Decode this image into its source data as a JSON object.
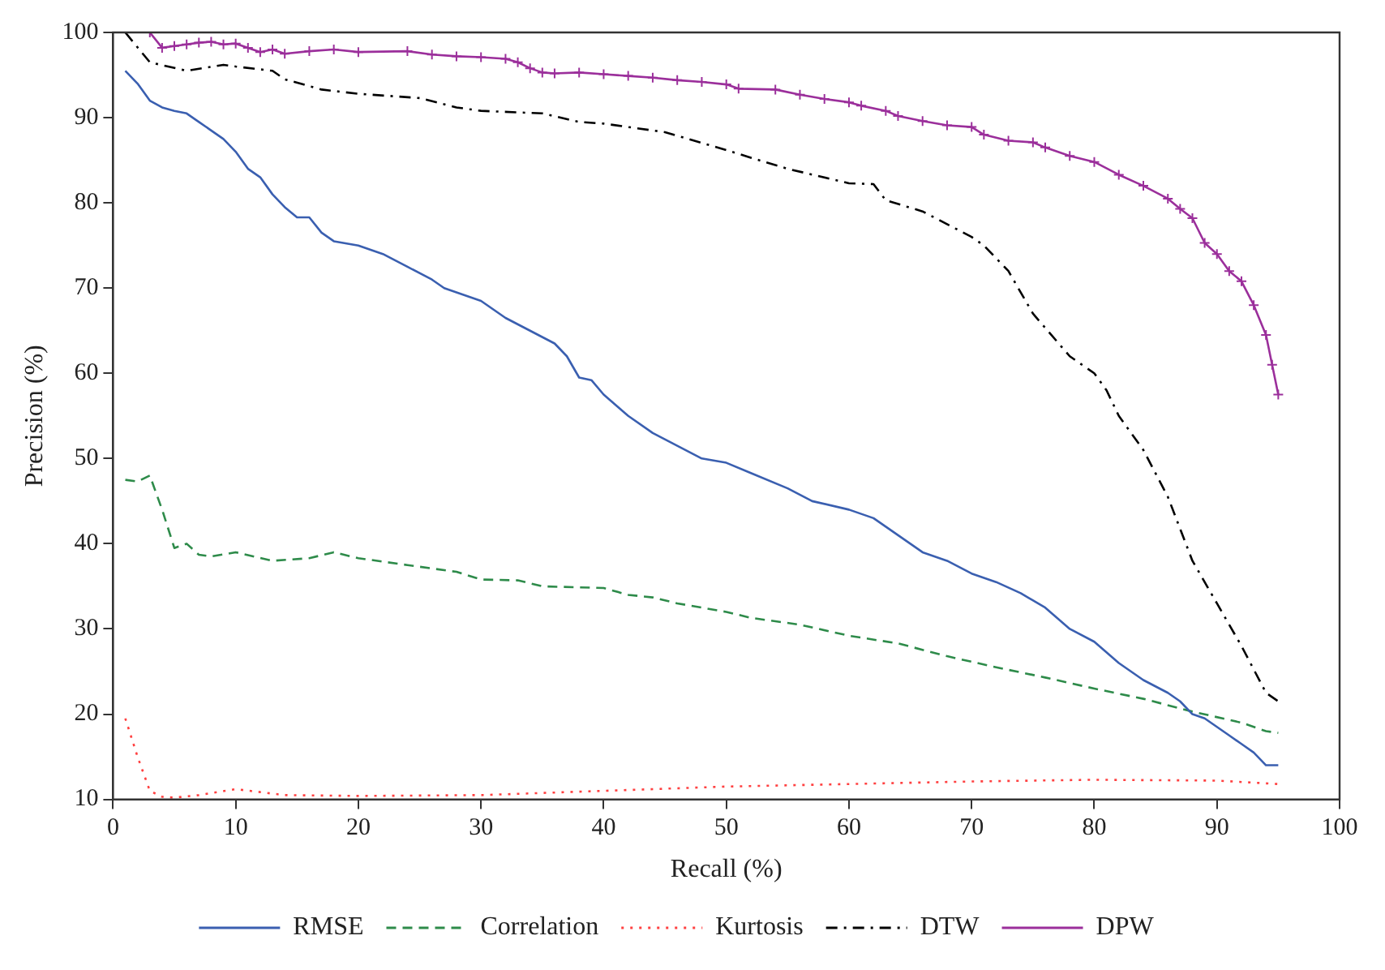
{
  "chart_data": {
    "type": "line",
    "xlabel": "Recall (%)",
    "ylabel": "Precision (%)",
    "xlim": [
      0,
      100
    ],
    "ylim": [
      10,
      100
    ],
    "xticks": [
      0,
      10,
      20,
      30,
      40,
      50,
      60,
      70,
      80,
      90,
      100
    ],
    "yticks": [
      10,
      20,
      30,
      40,
      50,
      60,
      70,
      80,
      90,
      100
    ],
    "grid": false,
    "legend": "bottom",
    "series": [
      {
        "name": "RMSE",
        "color": "#3a5fb0",
        "line_style": "solid",
        "marker": "none",
        "x": [
          1,
          2,
          3,
          4,
          5,
          6,
          7,
          8,
          9,
          10,
          11,
          12,
          13,
          14,
          15,
          16,
          17,
          18,
          20,
          22,
          24,
          26,
          27,
          30,
          32,
          34,
          36,
          37,
          38,
          39,
          40,
          42,
          44,
          46,
          48,
          50,
          52,
          55,
          57,
          60,
          62,
          64,
          66,
          68,
          70,
          72,
          74,
          76,
          78,
          80,
          82,
          84,
          86,
          87,
          88,
          89,
          90,
          91,
          92,
          93,
          94,
          95
        ],
        "values": [
          95.5,
          94,
          92,
          91.2,
          90.8,
          90.5,
          89.5,
          88.5,
          87.5,
          86,
          84,
          83,
          81,
          79.5,
          78.3,
          78.3,
          76.5,
          75.5,
          75,
          74,
          72.5,
          71,
          70,
          68.5,
          66.5,
          65,
          63.5,
          62,
          59.5,
          59.2,
          57.5,
          55,
          53,
          51.5,
          50,
          49.5,
          48.3,
          46.5,
          45,
          44,
          43,
          41,
          39,
          38,
          36.5,
          35.5,
          34.2,
          32.5,
          30,
          28.5,
          26,
          24,
          22.5,
          21.5,
          20,
          19.5,
          18.5,
          17.5,
          16.5,
          15.5,
          14,
          14
        ]
      },
      {
        "name": "Correlation",
        "color": "#2e8b4a",
        "line_style": "dashed",
        "marker": "none",
        "x": [
          1,
          2,
          3,
          4,
          5,
          6,
          7,
          8,
          10,
          13,
          16,
          18,
          20,
          24,
          28,
          30,
          33,
          35,
          40,
          42,
          44,
          46,
          50,
          52,
          56,
          60,
          64,
          68,
          72,
          76,
          80,
          84,
          88,
          92,
          94,
          95
        ],
        "values": [
          47.5,
          47.3,
          48,
          44,
          39.5,
          40,
          38.7,
          38.5,
          39,
          38,
          38.3,
          39,
          38.3,
          37.5,
          36.7,
          35.8,
          35.7,
          35,
          34.8,
          34,
          33.7,
          33,
          32,
          31.3,
          30.5,
          29.2,
          28.3,
          26.8,
          25.5,
          24.3,
          23,
          21.8,
          20.3,
          19,
          18,
          17.8
        ]
      },
      {
        "name": "Kurtosis",
        "color": "#ff4040",
        "line_style": "dotted",
        "marker": "none",
        "x": [
          1,
          2,
          3,
          4,
          5,
          7,
          10,
          14,
          20,
          30,
          40,
          50,
          60,
          70,
          80,
          90,
          95
        ],
        "values": [
          19.5,
          15,
          11,
          10.3,
          10.2,
          10.5,
          11.2,
          10.5,
          10.4,
          10.5,
          11,
          11.5,
          11.8,
          12.1,
          12.3,
          12.2,
          11.8
        ]
      },
      {
        "name": "DTW",
        "color": "#000000",
        "line_style": "dashdot",
        "marker": "none",
        "x": [
          1,
          3,
          6,
          9,
          10,
          13,
          14,
          17,
          20,
          25,
          28,
          30,
          35,
          38,
          40,
          45,
          50,
          52,
          55,
          60,
          62,
          63,
          66,
          70,
          71,
          73,
          75,
          78,
          80,
          81,
          82,
          84,
          86,
          88,
          90,
          92,
          94,
          95
        ],
        "values": [
          100,
          96.5,
          95.5,
          96.2,
          96,
          95.5,
          94.5,
          93.3,
          92.8,
          92.3,
          91.2,
          90.8,
          90.5,
          89.5,
          89.3,
          88.3,
          86.2,
          85.3,
          84,
          82.3,
          82.2,
          80.3,
          79,
          76,
          75,
          72,
          67,
          62,
          60,
          58,
          55,
          51,
          45.5,
          38,
          33,
          28,
          22.5,
          21.5
        ]
      },
      {
        "name": "DPW",
        "color": "#9b2f9b",
        "line_style": "solid",
        "marker": "cross",
        "x": [
          3,
          4,
          5,
          6,
          7,
          8,
          9,
          10,
          11,
          12,
          13,
          14,
          16,
          18,
          20,
          24,
          26,
          28,
          30,
          32,
          33,
          34,
          35,
          36,
          38,
          40,
          42,
          44,
          46,
          48,
          50,
          51,
          54,
          56,
          58,
          60,
          61,
          63,
          64,
          66,
          68,
          70,
          71,
          73,
          75,
          76,
          78,
          80,
          82,
          84,
          86,
          87,
          88,
          89,
          90,
          91,
          92,
          93,
          94,
          94.5,
          95
        ],
        "values": [
          100,
          98.2,
          98.4,
          98.6,
          98.8,
          98.9,
          98.6,
          98.7,
          98.2,
          97.7,
          98,
          97.5,
          97.8,
          98,
          97.7,
          97.8,
          97.4,
          97.2,
          97.1,
          96.9,
          96.5,
          95.8,
          95.3,
          95.2,
          95.3,
          95.1,
          94.9,
          94.7,
          94.4,
          94.2,
          93.9,
          93.4,
          93.3,
          92.7,
          92.2,
          91.8,
          91.4,
          90.8,
          90.2,
          89.6,
          89.1,
          88.9,
          88,
          87.3,
          87.1,
          86.5,
          85.5,
          84.8,
          83.3,
          82,
          80.5,
          79.3,
          78.2,
          75.3,
          74,
          72,
          70.8,
          68,
          64.5,
          61,
          57.5
        ]
      }
    ]
  }
}
